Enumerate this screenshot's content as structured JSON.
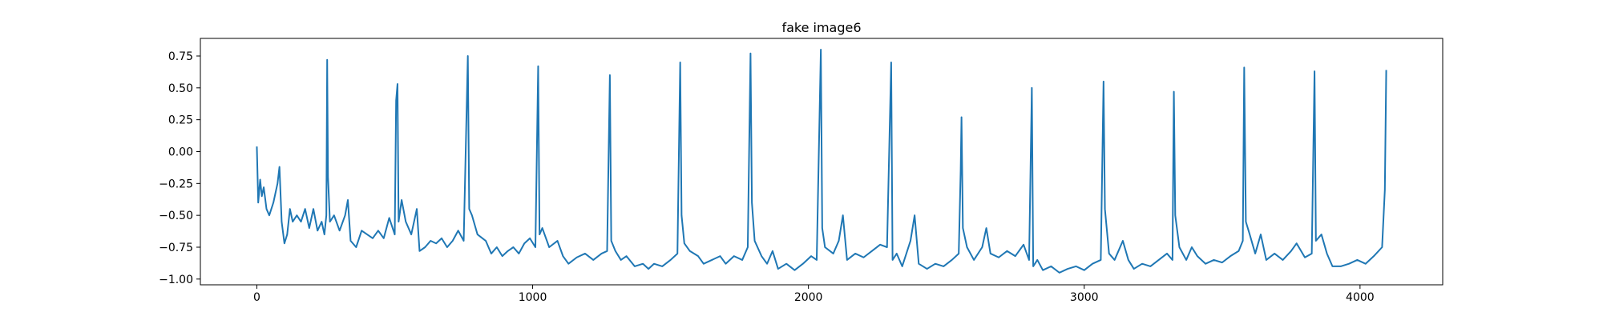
{
  "chart_data": {
    "type": "line",
    "title": "fake image6",
    "color": "#1f77b4",
    "xlim": [
      -204.75,
      4299.75
    ],
    "ylim": [
      -1.045,
      0.888
    ],
    "xticks": [
      0,
      1000,
      2000,
      3000,
      4000
    ],
    "yticks": [
      {
        "value": -1.0,
        "label": "−1.00"
      },
      {
        "value": -0.75,
        "label": "−0.75"
      },
      {
        "value": -0.5,
        "label": "−0.50"
      },
      {
        "value": -0.25,
        "label": "−0.25"
      },
      {
        "value": 0,
        "label": "0.00"
      },
      0.25,
      {
        "value": 0.5,
        "label": "0.50"
      },
      0.75
    ],
    "x": [
      0,
      5,
      12,
      18,
      25,
      35,
      45,
      60,
      75,
      82,
      90,
      100,
      110,
      120,
      130,
      145,
      160,
      175,
      190,
      205,
      220,
      235,
      245,
      252,
      255,
      258,
      265,
      280,
      300,
      320,
      330,
      340,
      360,
      380,
      400,
      420,
      440,
      460,
      480,
      500,
      505,
      510,
      514,
      525,
      540,
      560,
      580,
      590,
      610,
      630,
      650,
      670,
      690,
      710,
      730,
      750,
      765,
      770,
      780,
      800,
      830,
      850,
      870,
      890,
      910,
      930,
      950,
      970,
      990,
      1010,
      1020,
      1025,
      1035,
      1060,
      1090,
      1110,
      1130,
      1160,
      1190,
      1220,
      1250,
      1270,
      1280,
      1285,
      1300,
      1320,
      1340,
      1370,
      1400,
      1420,
      1440,
      1470,
      1500,
      1525,
      1535,
      1540,
      1550,
      1570,
      1600,
      1620,
      1650,
      1680,
      1700,
      1730,
      1760,
      1780,
      1790,
      1795,
      1805,
      1830,
      1850,
      1870,
      1890,
      1920,
      1950,
      1980,
      2010,
      2030,
      2045,
      2050,
      2060,
      2090,
      2110,
      2125,
      2140,
      2170,
      2200,
      2230,
      2260,
      2285,
      2300,
      2305,
      2320,
      2340,
      2370,
      2385,
      2400,
      2430,
      2460,
      2490,
      2520,
      2545,
      2552,
      2555,
      2560,
      2575,
      2600,
      2630,
      2645,
      2660,
      2690,
      2720,
      2750,
      2780,
      2800,
      2810,
      2815,
      2830,
      2850,
      2880,
      2910,
      2940,
      2970,
      3000,
      3030,
      3060,
      3070,
      3075,
      3090,
      3110,
      3140,
      3160,
      3180,
      3210,
      3240,
      3270,
      3300,
      3320,
      3323,
      3325,
      3330,
      3345,
      3370,
      3390,
      3410,
      3440,
      3470,
      3500,
      3530,
      3560,
      3575,
      3580,
      3586,
      3600,
      3620,
      3640,
      3660,
      3690,
      3720,
      3750,
      3770,
      3800,
      3825,
      3835,
      3840,
      3860,
      3880,
      3900,
      3930,
      3960,
      3990,
      4020,
      4050,
      4080,
      4090,
      4095
    ],
    "values": [
      0.04,
      -0.4,
      -0.22,
      -0.35,
      -0.28,
      -0.45,
      -0.5,
      -0.4,
      -0.25,
      -0.12,
      -0.55,
      -0.72,
      -0.65,
      -0.45,
      -0.55,
      -0.5,
      -0.55,
      -0.45,
      -0.6,
      -0.45,
      -0.62,
      -0.55,
      -0.65,
      -0.5,
      0.72,
      -0.2,
      -0.55,
      -0.5,
      -0.62,
      -0.5,
      -0.38,
      -0.7,
      -0.75,
      -0.62,
      -0.65,
      -0.68,
      -0.62,
      -0.68,
      -0.52,
      -0.65,
      0.4,
      0.53,
      -0.55,
      -0.38,
      -0.55,
      -0.65,
      -0.45,
      -0.78,
      -0.75,
      -0.7,
      -0.72,
      -0.68,
      -0.75,
      -0.7,
      -0.62,
      -0.7,
      0.75,
      -0.45,
      -0.5,
      -0.65,
      -0.7,
      -0.8,
      -0.75,
      -0.82,
      -0.78,
      -0.75,
      -0.8,
      -0.72,
      -0.68,
      -0.75,
      0.67,
      -0.65,
      -0.6,
      -0.75,
      -0.7,
      -0.82,
      -0.88,
      -0.83,
      -0.8,
      -0.85,
      -0.8,
      -0.78,
      0.6,
      -0.7,
      -0.78,
      -0.85,
      -0.82,
      -0.9,
      -0.88,
      -0.92,
      -0.88,
      -0.9,
      -0.85,
      -0.8,
      0.7,
      -0.5,
      -0.72,
      -0.78,
      -0.82,
      -0.88,
      -0.85,
      -0.82,
      -0.88,
      -0.82,
      -0.85,
      -0.75,
      0.77,
      -0.4,
      -0.7,
      -0.82,
      -0.88,
      -0.78,
      -0.92,
      -0.88,
      -0.93,
      -0.88,
      -0.82,
      -0.85,
      0.8,
      -0.6,
      -0.75,
      -0.8,
      -0.7,
      -0.5,
      -0.85,
      -0.8,
      -0.83,
      -0.78,
      -0.73,
      -0.75,
      0.7,
      -0.85,
      -0.8,
      -0.9,
      -0.7,
      -0.5,
      -0.88,
      -0.92,
      -0.88,
      -0.9,
      -0.85,
      -0.8,
      -0.15,
      0.27,
      -0.6,
      -0.75,
      -0.85,
      -0.75,
      -0.6,
      -0.8,
      -0.83,
      -0.78,
      -0.82,
      -0.73,
      -0.85,
      0.5,
      -0.9,
      -0.85,
      -0.93,
      -0.9,
      -0.95,
      -0.92,
      -0.9,
      -0.93,
      -0.88,
      -0.85,
      0.55,
      -0.45,
      -0.8,
      -0.85,
      -0.7,
      -0.85,
      -0.92,
      -0.88,
      -0.9,
      -0.85,
      -0.8,
      -0.85,
      -0.02,
      0.47,
      -0.5,
      -0.75,
      -0.85,
      -0.75,
      -0.82,
      -0.88,
      -0.85,
      -0.87,
      -0.82,
      -0.78,
      -0.7,
      0.66,
      -0.55,
      -0.65,
      -0.8,
      -0.65,
      -0.85,
      -0.8,
      -0.85,
      -0.78,
      -0.72,
      -0.83,
      -0.8,
      0.63,
      -0.7,
      -0.65,
      -0.8,
      -0.9,
      -0.9,
      -0.88,
      -0.85,
      -0.88,
      -0.82,
      -0.75,
      -0.3,
      0.64
    ]
  }
}
